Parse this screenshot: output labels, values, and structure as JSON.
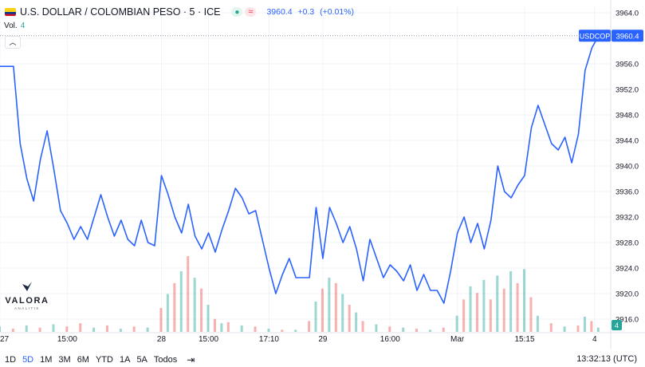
{
  "header": {
    "symbol_title": "U.S. DOLLAR / COLOMBIAN PESO · 5 · ICE",
    "market_status_icons": [
      "market-open-dot-icon",
      "data-delay-icon"
    ],
    "last_price": "3960.4",
    "change": "+0.3",
    "change_pct": "(+0.01%)",
    "volume_label": "Vol.",
    "volume_value": "4",
    "collapse_icon": "chevron-up-icon"
  },
  "brand": {
    "name": "VALORA",
    "subtitle": "ANALITIK"
  },
  "price_tag": {
    "symbol": "USDCOP",
    "value": "3960.4"
  },
  "volume_tag": "4",
  "bottom_bar": {
    "timeframes": [
      "1D",
      "5D",
      "1M",
      "3M",
      "6M",
      "YTD",
      "1A",
      "5A",
      "Todos"
    ],
    "selected": "5D",
    "range_icon": "calendar-range-icon",
    "clock": "13:32:13 (UTC)"
  },
  "colors": {
    "line": "#2962ff",
    "volume_up": "#26a69a",
    "volume_down": "#ef5350",
    "grid": "#f0f3fa",
    "axis_text": "#131722",
    "tag_bg": "#2962ff"
  },
  "chart_data": {
    "type": "line",
    "title": "U.S. DOLLAR / COLOMBIAN PESO · 5 · ICE",
    "series": [
      {
        "name": "USDCOP",
        "points": [
          {
            "t": 0,
            "v": 3955.6
          },
          {
            "t": 1,
            "v": 3955.6
          },
          {
            "t": 1.5,
            "v": 3943.5
          },
          {
            "t": 2,
            "v": 3938.0
          },
          {
            "t": 2.5,
            "v": 3934.5
          },
          {
            "t": 3,
            "v": 3941.0
          },
          {
            "t": 3.5,
            "v": 3945.5
          },
          {
            "t": 4,
            "v": 3939.5
          },
          {
            "t": 4.5,
            "v": 3933.0
          },
          {
            "t": 5,
            "v": 3931.0
          },
          {
            "t": 5.5,
            "v": 3928.5
          },
          {
            "t": 6,
            "v": 3930.5
          },
          {
            "t": 6.5,
            "v": 3928.5
          },
          {
            "t": 7,
            "v": 3932.0
          },
          {
            "t": 7.5,
            "v": 3935.5
          },
          {
            "t": 8,
            "v": 3932.0
          },
          {
            "t": 8.5,
            "v": 3929.0
          },
          {
            "t": 9,
            "v": 3931.5
          },
          {
            "t": 9.5,
            "v": 3928.5
          },
          {
            "t": 10,
            "v": 3927.5
          },
          {
            "t": 10.5,
            "v": 3931.5
          },
          {
            "t": 11,
            "v": 3928.0
          },
          {
            "t": 11.5,
            "v": 3927.5
          },
          {
            "t": 12,
            "v": 3938.5
          },
          {
            "t": 12.5,
            "v": 3935.5
          },
          {
            "t": 13,
            "v": 3932.0
          },
          {
            "t": 13.5,
            "v": 3929.5
          },
          {
            "t": 14,
            "v": 3934.0
          },
          {
            "t": 14.5,
            "v": 3929.0
          },
          {
            "t": 15,
            "v": 3927.0
          },
          {
            "t": 15.5,
            "v": 3929.5
          },
          {
            "t": 16,
            "v": 3926.5
          },
          {
            "t": 16.5,
            "v": 3930.0
          },
          {
            "t": 17,
            "v": 3933.0
          },
          {
            "t": 17.5,
            "v": 3936.5
          },
          {
            "t": 18,
            "v": 3935.0
          },
          {
            "t": 18.5,
            "v": 3932.5
          },
          {
            "t": 19,
            "v": 3933.0
          },
          {
            "t": 19.5,
            "v": 3928.5
          },
          {
            "t": 20,
            "v": 3924.0
          },
          {
            "t": 20.5,
            "v": 3920.0
          },
          {
            "t": 21,
            "v": 3923.0
          },
          {
            "t": 21.5,
            "v": 3925.5
          },
          {
            "t": 22,
            "v": 3922.5
          },
          {
            "t": 22.5,
            "v": 3922.5
          },
          {
            "t": 23,
            "v": 3922.5
          },
          {
            "t": 23.5,
            "v": 3933.5
          },
          {
            "t": 24,
            "v": 3925.5
          },
          {
            "t": 24.5,
            "v": 3933.5
          },
          {
            "t": 25,
            "v": 3931.0
          },
          {
            "t": 25.5,
            "v": 3928.0
          },
          {
            "t": 26,
            "v": 3930.5
          },
          {
            "t": 26.5,
            "v": 3927.0
          },
          {
            "t": 27,
            "v": 3922.0
          },
          {
            "t": 27.5,
            "v": 3928.5
          },
          {
            "t": 28,
            "v": 3925.5
          },
          {
            "t": 28.5,
            "v": 3922.5
          },
          {
            "t": 29,
            "v": 3924.5
          },
          {
            "t": 29.5,
            "v": 3923.5
          },
          {
            "t": 30,
            "v": 3922.0
          },
          {
            "t": 30.5,
            "v": 3924.5
          },
          {
            "t": 31,
            "v": 3920.5
          },
          {
            "t": 31.5,
            "v": 3923.0
          },
          {
            "t": 32,
            "v": 3920.5
          },
          {
            "t": 32.5,
            "v": 3920.5
          },
          {
            "t": 33,
            "v": 3918.5
          },
          {
            "t": 33.5,
            "v": 3923.5
          },
          {
            "t": 34,
            "v": 3929.5
          },
          {
            "t": 34.5,
            "v": 3932.0
          },
          {
            "t": 35,
            "v": 3928.0
          },
          {
            "t": 35.5,
            "v": 3931.0
          },
          {
            "t": 36,
            "v": 3927.0
          },
          {
            "t": 36.5,
            "v": 3931.5
          },
          {
            "t": 37,
            "v": 3940.0
          },
          {
            "t": 37.5,
            "v": 3936.0
          },
          {
            "t": 38,
            "v": 3935.0
          },
          {
            "t": 38.5,
            "v": 3937.0
          },
          {
            "t": 39,
            "v": 3938.5
          },
          {
            "t": 39.5,
            "v": 3946.0
          },
          {
            "t": 40,
            "v": 3949.5
          },
          {
            "t": 40.5,
            "v": 3946.5
          },
          {
            "t": 41,
            "v": 3943.5
          },
          {
            "t": 41.5,
            "v": 3942.5
          },
          {
            "t": 42,
            "v": 3944.5
          },
          {
            "t": 42.5,
            "v": 3940.5
          },
          {
            "t": 43,
            "v": 3945.0
          },
          {
            "t": 43.5,
            "v": 3955.0
          },
          {
            "t": 44,
            "v": 3958.5
          },
          {
            "t": 44.5,
            "v": 3960.4
          }
        ]
      }
    ],
    "volume": {
      "name": "Vol.",
      "bars": [
        {
          "t": 0,
          "v": 0.5,
          "d": "up"
        },
        {
          "t": 1,
          "v": 0.3,
          "d": "down"
        },
        {
          "t": 2,
          "v": 0.6,
          "d": "up"
        },
        {
          "t": 3,
          "v": 0.4,
          "d": "down"
        },
        {
          "t": 4,
          "v": 0.7,
          "d": "up"
        },
        {
          "t": 5,
          "v": 0.5,
          "d": "down"
        },
        {
          "t": 6,
          "v": 0.8,
          "d": "down"
        },
        {
          "t": 7,
          "v": 0.4,
          "d": "up"
        },
        {
          "t": 8,
          "v": 0.6,
          "d": "down"
        },
        {
          "t": 9,
          "v": 0.3,
          "d": "up"
        },
        {
          "t": 10,
          "v": 0.5,
          "d": "down"
        },
        {
          "t": 11,
          "v": 0.4,
          "d": "up"
        },
        {
          "t": 12,
          "v": 2.2,
          "d": "down"
        },
        {
          "t": 12.5,
          "v": 3.5,
          "d": "up"
        },
        {
          "t": 13,
          "v": 4.5,
          "d": "down"
        },
        {
          "t": 13.5,
          "v": 5.6,
          "d": "up"
        },
        {
          "t": 14,
          "v": 7.0,
          "d": "down"
        },
        {
          "t": 14.5,
          "v": 5.0,
          "d": "up"
        },
        {
          "t": 15,
          "v": 4.0,
          "d": "down"
        },
        {
          "t": 15.5,
          "v": 2.5,
          "d": "up"
        },
        {
          "t": 16,
          "v": 1.2,
          "d": "down"
        },
        {
          "t": 16.5,
          "v": 0.8,
          "d": "up"
        },
        {
          "t": 17,
          "v": 0.9,
          "d": "down"
        },
        {
          "t": 18,
          "v": 0.6,
          "d": "up"
        },
        {
          "t": 19,
          "v": 0.5,
          "d": "down"
        },
        {
          "t": 20,
          "v": 0.3,
          "d": "up"
        },
        {
          "t": 21,
          "v": 0.2,
          "d": "down"
        },
        {
          "t": 22,
          "v": 0.2,
          "d": "up"
        },
        {
          "t": 23,
          "v": 1.0,
          "d": "down"
        },
        {
          "t": 23.5,
          "v": 2.8,
          "d": "up"
        },
        {
          "t": 24,
          "v": 4.0,
          "d": "down"
        },
        {
          "t": 24.5,
          "v": 5.0,
          "d": "up"
        },
        {
          "t": 25,
          "v": 4.5,
          "d": "down"
        },
        {
          "t": 25.5,
          "v": 3.5,
          "d": "up"
        },
        {
          "t": 26,
          "v": 2.5,
          "d": "down"
        },
        {
          "t": 26.5,
          "v": 1.8,
          "d": "up"
        },
        {
          "t": 27,
          "v": 1.0,
          "d": "down"
        },
        {
          "t": 28,
          "v": 0.7,
          "d": "up"
        },
        {
          "t": 29,
          "v": 0.5,
          "d": "down"
        },
        {
          "t": 30,
          "v": 0.4,
          "d": "up"
        },
        {
          "t": 31,
          "v": 0.3,
          "d": "down"
        },
        {
          "t": 32,
          "v": 0.2,
          "d": "up"
        },
        {
          "t": 33,
          "v": 0.4,
          "d": "down"
        },
        {
          "t": 34,
          "v": 1.5,
          "d": "up"
        },
        {
          "t": 34.5,
          "v": 3.0,
          "d": "down"
        },
        {
          "t": 35,
          "v": 4.2,
          "d": "up"
        },
        {
          "t": 35.5,
          "v": 3.6,
          "d": "down"
        },
        {
          "t": 36,
          "v": 4.8,
          "d": "up"
        },
        {
          "t": 36.5,
          "v": 3.0,
          "d": "down"
        },
        {
          "t": 37,
          "v": 5.2,
          "d": "up"
        },
        {
          "t": 37.5,
          "v": 4.0,
          "d": "down"
        },
        {
          "t": 38,
          "v": 5.6,
          "d": "up"
        },
        {
          "t": 38.5,
          "v": 4.5,
          "d": "down"
        },
        {
          "t": 39,
          "v": 5.8,
          "d": "up"
        },
        {
          "t": 39.5,
          "v": 3.2,
          "d": "down"
        },
        {
          "t": 40,
          "v": 1.5,
          "d": "up"
        },
        {
          "t": 41,
          "v": 0.8,
          "d": "down"
        },
        {
          "t": 42,
          "v": 0.5,
          "d": "up"
        },
        {
          "t": 43,
          "v": 0.6,
          "d": "down"
        },
        {
          "t": 43.5,
          "v": 1.4,
          "d": "up"
        },
        {
          "t": 44,
          "v": 1.0,
          "d": "down"
        },
        {
          "t": 44.5,
          "v": 0.4,
          "d": "up"
        }
      ]
    },
    "y_ticks": [
      "3916.0",
      "3920.0",
      "3924.0",
      "3928.0",
      "3932.0",
      "3936.0",
      "3940.0",
      "3944.0",
      "3948.0",
      "3952.0",
      "3956.0",
      "3960.0",
      "3964.0"
    ],
    "ylim": [
      3914.0,
      3965.0
    ],
    "x_ticks": [
      {
        "t": 0,
        "label": "27",
        "bold": false
      },
      {
        "t": 5,
        "label": "15:00",
        "bold": false
      },
      {
        "t": 12,
        "label": "28",
        "bold": false
      },
      {
        "t": 15.5,
        "label": "15:00",
        "bold": false
      },
      {
        "t": 20,
        "label": "17:10",
        "bold": false
      },
      {
        "t": 24,
        "label": "29",
        "bold": false
      },
      {
        "t": 29,
        "label": "16:00",
        "bold": false
      },
      {
        "t": 34,
        "label": "Mar",
        "bold": false
      },
      {
        "t": 39,
        "label": "15:15",
        "bold": false
      },
      {
        "t": 44.2,
        "label": "4",
        "bold": false
      }
    ],
    "xlim": [
      0,
      45.4
    ],
    "grid": true,
    "legend": "none",
    "last_value": 3960.4
  }
}
